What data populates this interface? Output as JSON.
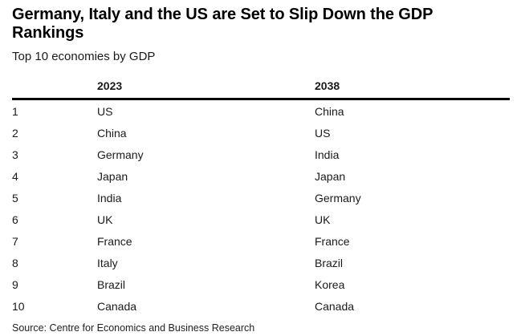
{
  "chart_data": {
    "type": "table",
    "title": "Germany, Italy and the US are Set to Slip Down the GDP Rankings",
    "subtitle": "Top 10 economies by GDP",
    "columns": [
      "",
      "2023",
      "2038"
    ],
    "rows": [
      [
        "1",
        "US",
        "China"
      ],
      [
        "2",
        "China",
        "US"
      ],
      [
        "3",
        "Germany",
        "India"
      ],
      [
        "4",
        "Japan",
        "Japan"
      ],
      [
        "5",
        "India",
        "Germany"
      ],
      [
        "6",
        "UK",
        "UK"
      ],
      [
        "7",
        "France",
        "France"
      ],
      [
        "8",
        "Italy",
        "Brazil"
      ],
      [
        "9",
        "Brazil",
        "Korea"
      ],
      [
        "10",
        "Canada",
        "Canada"
      ]
    ],
    "source": "Source: Centre for Economics and Business Research",
    "layout": {
      "legend": "none",
      "grid": "header-rule-only"
    }
  },
  "colors": {
    "background": "#ffffff",
    "title_text": "#000000",
    "body_text": "#1a1a1a",
    "header_rule": "#000000"
  }
}
